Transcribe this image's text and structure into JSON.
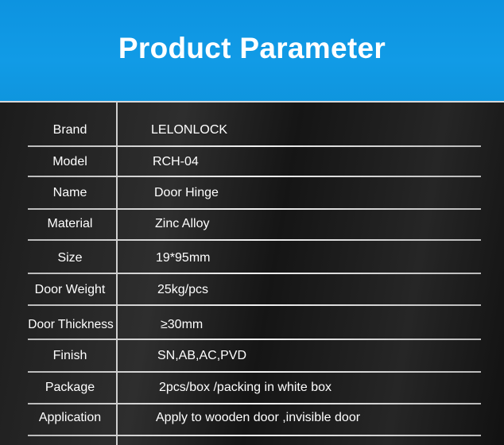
{
  "title": "Product Parameter",
  "rows": [
    {
      "label": "Brand",
      "value": "LELONLOCK"
    },
    {
      "label": "Model",
      "value": "RCH-04"
    },
    {
      "label": "Name",
      "value": "Door Hinge"
    },
    {
      "label": "Material",
      "value": "Zinc Alloy"
    },
    {
      "label": "Size",
      "value": "19*95mm"
    },
    {
      "label": "Door Weight",
      "value": "25kg/pcs"
    },
    {
      "label": "Door Thickness",
      "value": "≥30mm"
    },
    {
      "label": "Finish",
      "value": "SN,AB,AC,PVD"
    },
    {
      "label": "Package",
      "value": "2pcs/box /packing in white box"
    },
    {
      "label": "Application",
      "value": "Apply to wooden door ,invisible door"
    }
  ],
  "colors": {
    "header": "#119be6",
    "background": "#1e1e1e",
    "text": "#ffffff"
  }
}
